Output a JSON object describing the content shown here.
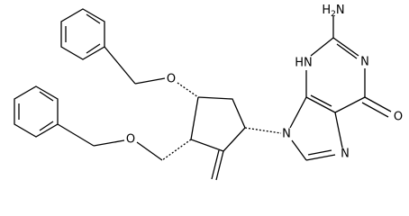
{
  "atoms": {
    "amino": {
      "h": "H",
      "sub": "2",
      "n": "N"
    },
    "n1": "N",
    "n3": "HN",
    "n7": "N",
    "n9": "N",
    "o6": "O",
    "o_upper": "O",
    "o_lower": "O"
  }
}
